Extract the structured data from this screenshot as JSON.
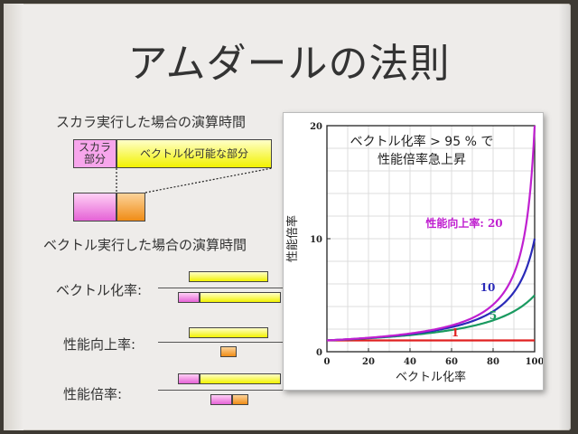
{
  "slide": {
    "title": "アムダールの法則",
    "scalar_heading": "スカラ実行した場合の演算時間",
    "scalar_box_label": "スカラ\n部分",
    "vector_box_label": "ベクトル化可能な部分",
    "vector_heading": "ベクトル実行した場合の演算時間",
    "row1_label": "ベクトル化率:",
    "row2_label": "性能向上率:",
    "row3_label": "性能倍率:"
  },
  "colors": {
    "scalar": "#e563d6",
    "vector": "#f2f200",
    "accelerated": "#f08c16"
  },
  "chart_data": {
    "type": "line",
    "annotation": "ベクトル化率 > 95 % で\n性能倍率急上昇",
    "xlabel": "ベクトル化率",
    "ylabel": "性能倍率",
    "xlim": [
      0,
      100
    ],
    "ylim": [
      0,
      20
    ],
    "xticks": [
      0,
      20,
      40,
      60,
      80,
      100
    ],
    "yticks": [
      0,
      10,
      20
    ],
    "grid": true,
    "series": [
      {
        "name": "1",
        "label": "1",
        "speedup": 1,
        "color": "#e02020"
      },
      {
        "name": "5",
        "label": "5",
        "speedup": 5,
        "color": "#1a9a60"
      },
      {
        "name": "10",
        "label": "10",
        "speedup": 10,
        "color": "#2a2ab8"
      },
      {
        "name": "20",
        "label": "性能向上率: 20",
        "speedup": 20,
        "color": "#c020d0"
      }
    ]
  }
}
